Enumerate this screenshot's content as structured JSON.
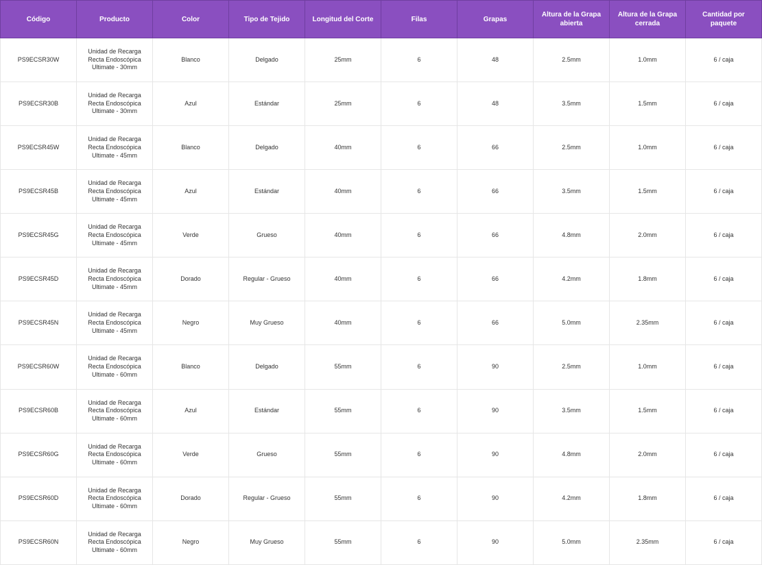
{
  "table": {
    "header_bg": "#8a4fc0",
    "header_text_color": "#ffffff",
    "border_color": "#e6e6e6",
    "cell_text_color": "#333333",
    "header_fontsize": 10,
    "cell_fontsize": 9,
    "columns": [
      "Código",
      "Producto",
      "Color",
      "Tipo de Tejido",
      "Longitud del Corte",
      "Filas",
      "Grapas",
      "Altura de la Grapa abierta",
      "Altura de la Grapa cerrada",
      "Cantidad por paquete"
    ],
    "rows": [
      [
        "PS9ECSR30W",
        "Unidad de Recarga Recta Endoscópica Ultimate - 30mm",
        "Blanco",
        "Delgado",
        "25mm",
        "6",
        "48",
        "2.5mm",
        "1.0mm",
        "6 / caja"
      ],
      [
        "PS9ECSR30B",
        "Unidad de Recarga Recta Endoscópica Ultimate - 30mm",
        "Azul",
        "Estándar",
        "25mm",
        "6",
        "48",
        "3.5mm",
        "1.5mm",
        "6 / caja"
      ],
      [
        "PS9ECSR45W",
        "Unidad de Recarga Recta Endoscópica Ultimate - 45mm",
        "Blanco",
        "Delgado",
        "40mm",
        "6",
        "66",
        "2.5mm",
        "1.0mm",
        "6 / caja"
      ],
      [
        "PS9ECSR45B",
        "Unidad de Recarga Recta Endoscópica Ultimate - 45mm",
        "Azul",
        "Estándar",
        "40mm",
        "6",
        "66",
        "3.5mm",
        "1.5mm",
        "6 / caja"
      ],
      [
        "PS9ECSR45G",
        "Unidad de Recarga Recta Endoscópica Ultimate - 45mm",
        "Verde",
        "Grueso",
        "40mm",
        "6",
        "66",
        "4.8mm",
        "2.0mm",
        "6 / caja"
      ],
      [
        "PS9ECSR45D",
        "Unidad de Recarga Recta Endoscópica Ultimate - 45mm",
        "Dorado",
        "Regular - Grueso",
        "40mm",
        "6",
        "66",
        "4.2mm",
        "1.8mm",
        "6 / caja"
      ],
      [
        "PS9ECSR45N",
        "Unidad de Recarga Recta Endoscópica Ultimate - 45mm",
        "Negro",
        "Muy Grueso",
        "40mm",
        "6",
        "66",
        "5.0mm",
        "2.35mm",
        "6 / caja"
      ],
      [
        "PS9ECSR60W",
        "Unidad de Recarga Recta Endoscópica Ultimate - 60mm",
        "Blanco",
        "Delgado",
        "55mm",
        "6",
        "90",
        "2.5mm",
        "1.0mm",
        "6 / caja"
      ],
      [
        "PS9ECSR60B",
        "Unidad de Recarga Recta Endoscópica Ultimate - 60mm",
        "Azul",
        "Estándar",
        "55mm",
        "6",
        "90",
        "3.5mm",
        "1.5mm",
        "6 / caja"
      ],
      [
        "PS9ECSR60G",
        "Unidad de Recarga Recta Endoscópica Ultimate - 60mm",
        "Verde",
        "Grueso",
        "55mm",
        "6",
        "90",
        "4.8mm",
        "2.0mm",
        "6 / caja"
      ],
      [
        "PS9ECSR60D",
        "Unidad de Recarga Recta Endoscópica Ultimate - 60mm",
        "Dorado",
        "Regular - Grueso",
        "55mm",
        "6",
        "90",
        "4.2mm",
        "1.8mm",
        "6 / caja"
      ],
      [
        "PS9ECSR60N",
        "Unidad de Recarga Recta Endoscópica Ultimate - 60mm",
        "Negro",
        "Muy Grueso",
        "55mm",
        "6",
        "90",
        "5.0mm",
        "2.35mm",
        "6 / caja"
      ]
    ]
  }
}
